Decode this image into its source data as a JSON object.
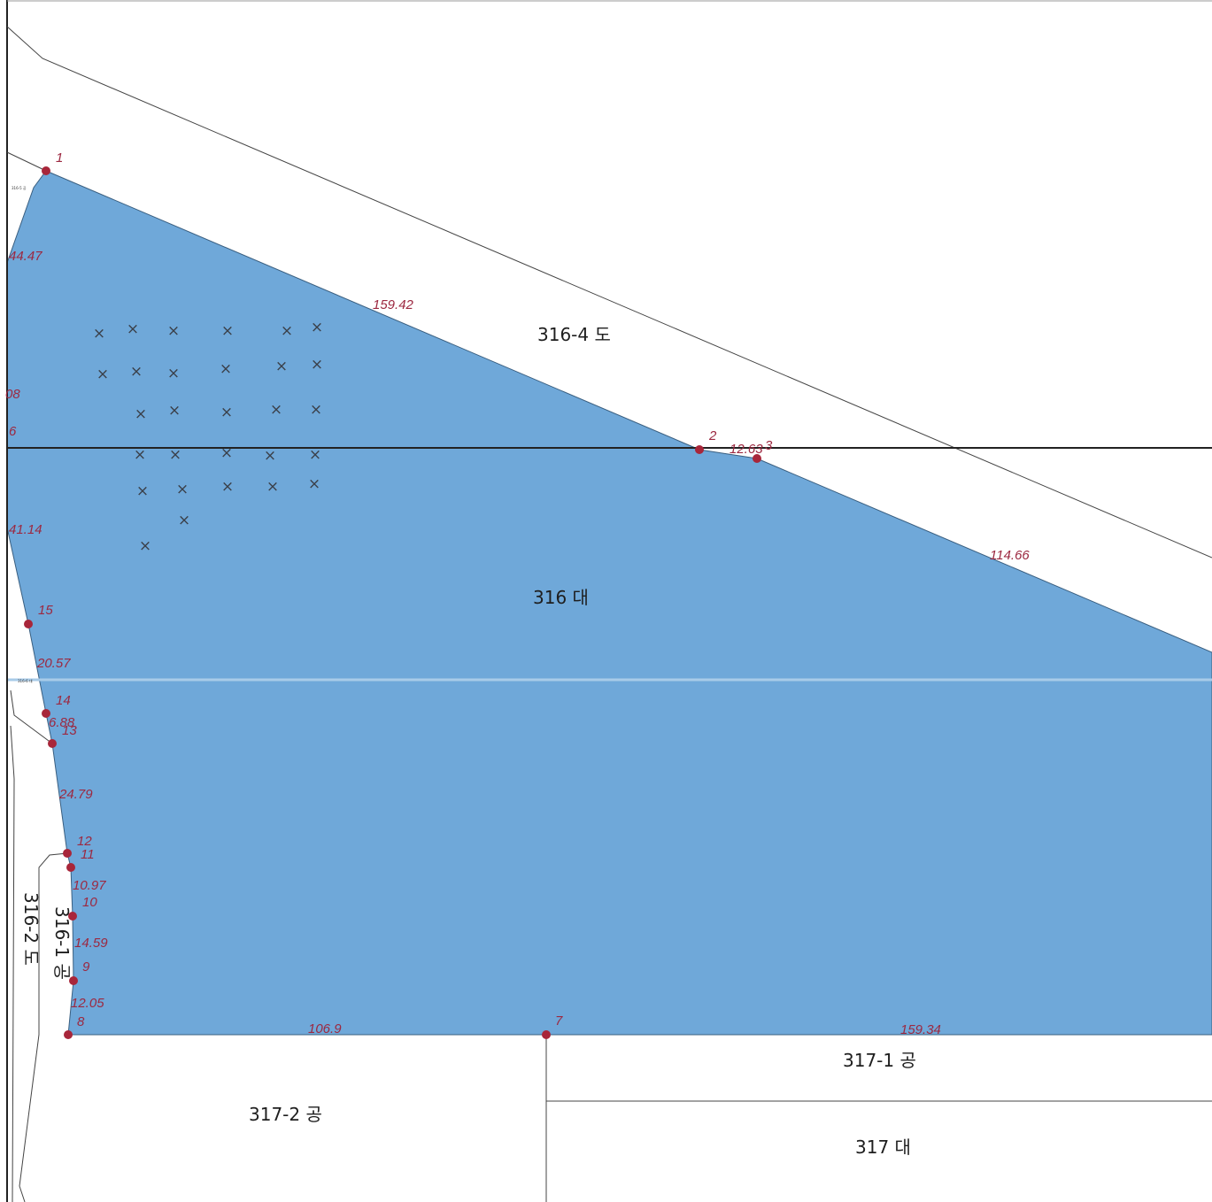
{
  "colors": {
    "parcel_fill": "#6fa8d9",
    "vertex_dot": "#a8263a",
    "vertex_text": "#9c2840",
    "line": "#333333"
  },
  "parcels": {
    "main": "316 대",
    "road_north": "316-4 도",
    "road_west": "316-2 도",
    "park_west": "316-1 공",
    "park_south_west": "317-2 공",
    "park_south_east": "317-1 공",
    "lot_south": "317 대",
    "tiny_top": "316-5 공",
    "tiny_mid": "316-6 대"
  },
  "vertices": [
    "1",
    "2",
    "3",
    "6",
    "7",
    "8",
    "9",
    "10",
    "11",
    "12",
    "13",
    "14",
    "15",
    "08"
  ],
  "edge_lengths": {
    "e1_2": "159.42",
    "e2_3": "12.63",
    "e3_east": "114.66",
    "e_west_top": "44.47",
    "e_west_mid": "41.14",
    "e15_14": "20.57",
    "e14_13": "6.88",
    "e13_12": "24.79",
    "e11_10": "10.97",
    "e10_9": "14.59",
    "e9_8": "12.05",
    "e8_7": "106.9",
    "e7_east": "159.34"
  },
  "mark_symbol": "×"
}
